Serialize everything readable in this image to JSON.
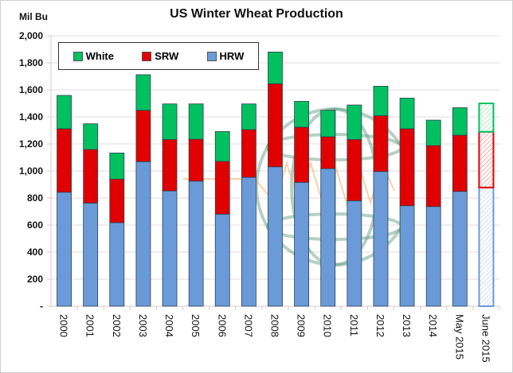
{
  "chart_data": {
    "type": "bar",
    "stacked": true,
    "title": "US Winter Wheat Production",
    "ylabel": "Mil Bu",
    "xlabel": "",
    "ylim": [
      0,
      2000
    ],
    "yticks": [
      0,
      200,
      400,
      600,
      800,
      1000,
      1200,
      1400,
      1600,
      1800,
      2000
    ],
    "ytick_labels": [
      "-",
      "200",
      "400",
      "600",
      "800",
      "1,000",
      "1,200",
      "1,400",
      "1,600",
      "1,800",
      "2,000"
    ],
    "grid": true,
    "legend_position": "top-left",
    "categories": [
      "2000",
      "2001",
      "2002",
      "2003",
      "2004",
      "2005",
      "2006",
      "2007",
      "2008",
      "2009",
      "2010",
      "2011",
      "2012",
      "2013",
      "2014",
      "May 2015",
      "June 2015"
    ],
    "hatched_categories": [
      "June 2015"
    ],
    "series": [
      {
        "name": "HRW",
        "color": "#6a9bd8",
        "values": [
          843,
          763,
          618,
          1069,
          853,
          925,
          681,
          953,
          1031,
          916,
          1018,
          780,
          996,
          743,
          737,
          849,
          878
        ]
      },
      {
        "name": "SRW",
        "color": "#e00000",
        "values": [
          469,
          396,
          322,
          380,
          380,
          310,
          390,
          353,
          614,
          408,
          235,
          453,
          413,
          569,
          451,
          416,
          412
        ]
      },
      {
        "name": "White",
        "color": "#00c060",
        "values": [
          247,
          190,
          193,
          263,
          263,
          261,
          221,
          190,
          235,
          191,
          196,
          255,
          218,
          227,
          188,
          203,
          210
        ]
      }
    ]
  },
  "legend": [
    {
      "label": "White",
      "color": "#00c060"
    },
    {
      "label": "SRW",
      "color": "#e00000"
    },
    {
      "label": "HRW",
      "color": "#6a9bd8"
    }
  ]
}
